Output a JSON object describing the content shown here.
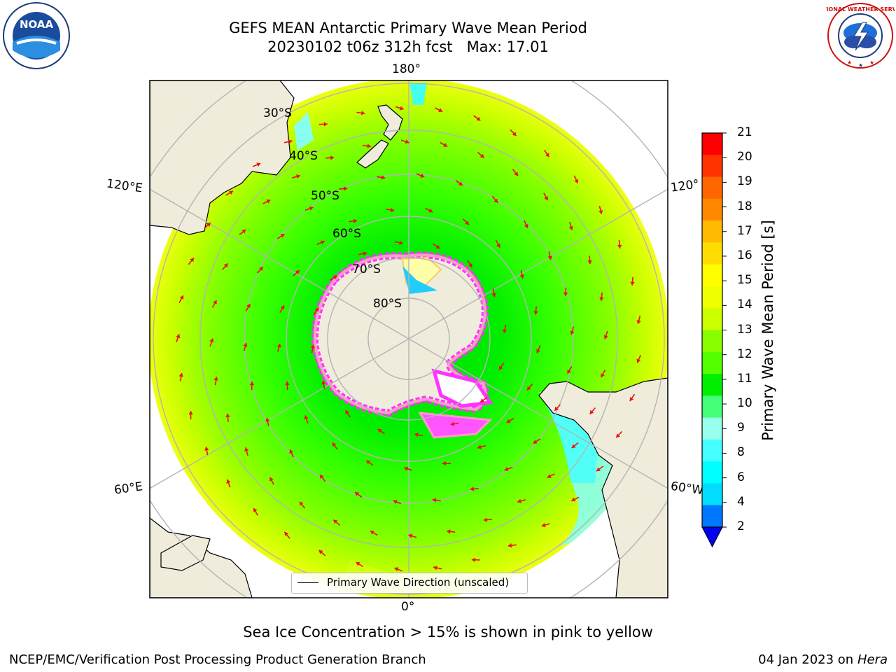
{
  "title": {
    "line1": "GEFS MEAN Antarctic Primary Wave Mean Period",
    "line2": "20230102 t06z 312h fcst   Max: 17.01"
  },
  "logos": {
    "left": "NOAA",
    "right": "NATIONAL WEATHER SERVICE"
  },
  "map": {
    "projection": "south-polar-stereographic",
    "longitude_labels": [
      "180°",
      "120°E",
      "120°",
      "60°E",
      "60°W",
      "0°"
    ],
    "latitude_labels": [
      "30°S",
      "40°S",
      "50°S",
      "60°S",
      "70°S",
      "80°S"
    ],
    "land_color": "#efecdc",
    "graticule_color": "#b4b4b4",
    "arrow_color": "#ee1111",
    "ice_colors": [
      "#ff33ff",
      "#ff99cc",
      "#ffcc66",
      "#ffff88"
    ]
  },
  "legend": {
    "label": "Primary Wave Direction (unscaled)"
  },
  "colorbar": {
    "title": "Primary Wave Mean Period [s]",
    "ticks": [
      "21",
      "20",
      "19",
      "18",
      "17",
      "16",
      "15",
      "14",
      "13",
      "12",
      "11",
      "10",
      "9",
      "8",
      "6",
      "4",
      "2"
    ],
    "colors": [
      "#ff0000",
      "#ff3300",
      "#ff6600",
      "#ff8800",
      "#ffbb00",
      "#ffdd00",
      "#ffff00",
      "#eeff00",
      "#ccff00",
      "#88ff00",
      "#55ff00",
      "#00ee00",
      "#44ff77",
      "#99ffee",
      "#44ffff",
      "#00ffff",
      "#00ddff",
      "#0077ff"
    ],
    "extend_color": "#0000ee"
  },
  "note": "Sea Ice Concentration > 15% is shown in pink to yellow",
  "footer": {
    "left": "NCEP/EMC/Verification Post Processing Product Generation Branch",
    "right_prefix": "04 Jan 2023 on ",
    "right_host": "Hera"
  }
}
